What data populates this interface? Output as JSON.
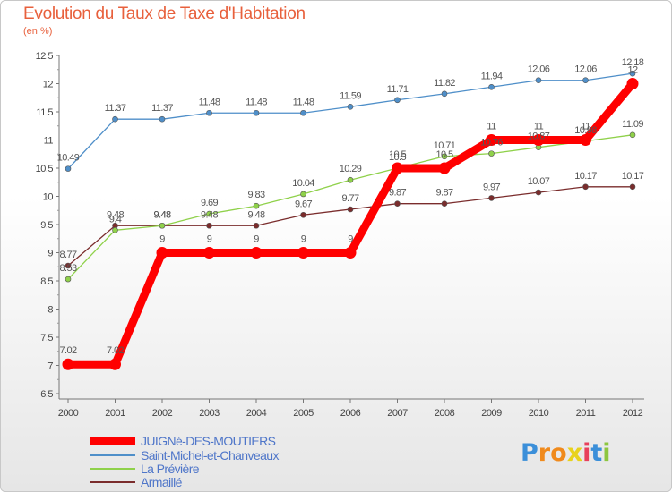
{
  "header": {
    "title": "Evolution du Taux de Taxe d'Habitation",
    "subtitle": "(en %)"
  },
  "chart_data": {
    "type": "line",
    "x": [
      "2000",
      "2001",
      "2002",
      "2003",
      "2004",
      "2005",
      "2006",
      "2007",
      "2008",
      "2009",
      "2010",
      "2011",
      "2012"
    ],
    "ylim": [
      6.5,
      12.5
    ],
    "yticks": [
      "6.5",
      "7",
      "7.5",
      "8",
      "8.5",
      "9",
      "9.5",
      "10",
      "10.5",
      "11",
      "11.5",
      "12",
      "12.5"
    ],
    "grid": false,
    "legend_position": "bottom",
    "series": [
      {
        "name": "JUIGNé-DES-MOUTIERS",
        "color": "#ff0000",
        "values": [
          7.02,
          7.02,
          9,
          9,
          9,
          9,
          9,
          10.5,
          10.5,
          11,
          11,
          11,
          12
        ],
        "labels": [
          "7.02",
          "7.02",
          "9",
          "9",
          "9",
          "9",
          "9",
          "10.5",
          "10.5",
          "11",
          "11",
          "11",
          "12"
        ]
      },
      {
        "name": "Saint-Michel-et-Chanveaux",
        "color": "#4f8fc9",
        "values": [
          10.49,
          11.37,
          11.37,
          11.48,
          11.48,
          11.48,
          11.59,
          11.71,
          11.82,
          11.94,
          12.06,
          12.06,
          12.18
        ],
        "labels": [
          "10.49",
          "11.37",
          "11.37",
          "11.48",
          "11.48",
          "11.48",
          "11.59",
          "11.71",
          "11.82",
          "11.94",
          "12.06",
          "12.06",
          "12.18"
        ]
      },
      {
        "name": "La Prévière",
        "color": "#8fd14a",
        "values": [
          8.53,
          9.4,
          9.48,
          9.69,
          9.83,
          10.04,
          10.29,
          10.5,
          10.71,
          10.76,
          10.87,
          10.98,
          11.09
        ],
        "labels": [
          "8.53",
          "9.4",
          "9.48",
          "9.69",
          "9.83",
          "10.04",
          "10.29",
          "10.5",
          "10.71",
          "10.76",
          "10.87",
          "10.98",
          "11.09"
        ]
      },
      {
        "name": "Armaillé",
        "color": "#7a2c2c",
        "values": [
          8.77,
          9.48,
          9.48,
          9.48,
          9.48,
          9.67,
          9.77,
          9.87,
          9.87,
          9.97,
          10.07,
          10.17,
          10.17
        ],
        "labels": [
          "8.77",
          "9.48",
          "9.48",
          "9.48",
          "9.48",
          "9.67",
          "9.77",
          "9.87",
          "9.87",
          "9.97",
          "10.07",
          "10.17",
          "10.17"
        ]
      }
    ]
  },
  "legend": {
    "items": [
      {
        "label": "JUIGNé-DES-MOUTIERS",
        "color": "#ff0000"
      },
      {
        "label": "Saint-Michel-et-Chanveaux",
        "color": "#4f8fc9"
      },
      {
        "label": "La Prévière",
        "color": "#8fd14a"
      },
      {
        "label": "Armaillé",
        "color": "#7a2c2c"
      }
    ]
  },
  "logo": {
    "text": "Proxiti",
    "letter_colors": [
      "#3b8fd9",
      "#f08a1c",
      "#f08a1c",
      "#e8d21c",
      "#e8405c",
      "#3b8fd9",
      "#8dc63f"
    ]
  }
}
